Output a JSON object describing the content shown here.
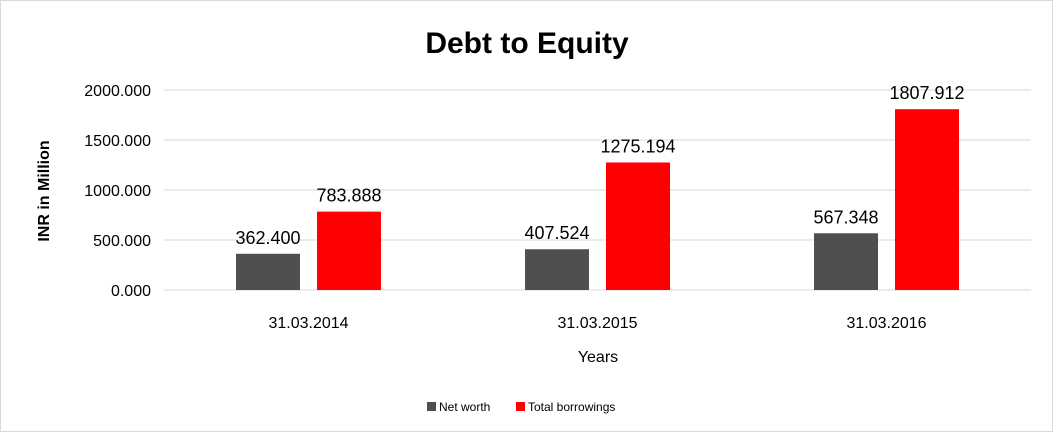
{
  "chart_data": {
    "type": "bar",
    "title": "Debt to Equity",
    "xlabel": "Years",
    "ylabel": "INR in Million",
    "categories": [
      "31.03.2014",
      "31.03.2015",
      "31.03.2016"
    ],
    "series": [
      {
        "name": "Net worth",
        "color": "#4f4f4f",
        "values": [
          362.4,
          407.524,
          567.348
        ],
        "labels": [
          "362.400",
          "407.524",
          "567.348"
        ]
      },
      {
        "name": "Total borrowings",
        "color": "#ff0000",
        "values": [
          783.888,
          1275.194,
          1807.912
        ],
        "labels": [
          "783.888",
          "1275.194",
          "1807.912"
        ]
      }
    ],
    "ylim": [
      0,
      2000
    ],
    "yticks": [
      "0.000",
      "500.000",
      "1000.000",
      "1500.000",
      "2000.000"
    ],
    "ytick_values": [
      0,
      500,
      1000,
      1500,
      2000
    ],
    "grid": true,
    "legend_position": "bottom"
  }
}
